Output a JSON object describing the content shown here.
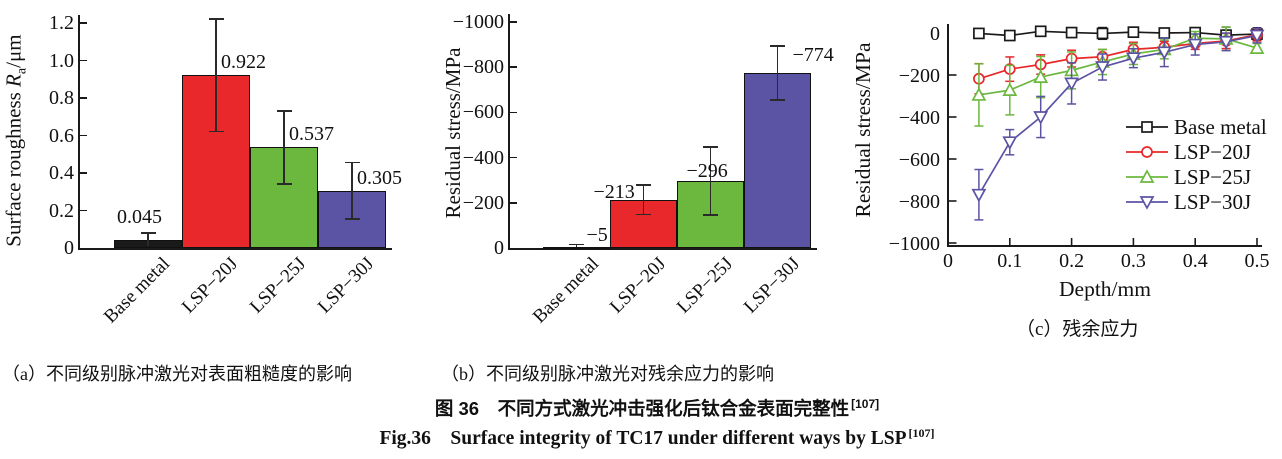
{
  "figure_captions": {
    "cn": "图 36　不同方式激光冲击强化后钛合金表面完整性",
    "cn_sup": "[107]",
    "en": "Fig.36　Surface integrity of TC17 under different ways by LSP",
    "en_sup": "[107]"
  },
  "panel_captions": {
    "a": "（a）不同级别脉冲激光对表面粗糙度的影响",
    "b": "（b）不同级别脉冲激光对残余应力的影响",
    "c": "（c）残余应力"
  },
  "axis_labels": {
    "a_prefix": "Surface roughness ",
    "a_symbol": "R",
    "a_sub": "a",
    "a_suffix": "/μm",
    "b_ylabel": "Residual stress/MPa"
  },
  "colors": {
    "base_metal": "#1a1a1a",
    "lsp20": "#e8282a",
    "lsp25": "#6cb83f",
    "lsp30": "#5b53a4",
    "axis": "#1a1a1a"
  },
  "chart_data": [
    {
      "id": "a",
      "type": "bar",
      "ylabel": "Surface roughness Ra/μm",
      "categories": [
        "Base metal",
        "LSP−20J",
        "LSP−25J",
        "LSP−30J"
      ],
      "values": [
        0.045,
        0.922,
        0.537,
        0.305
      ],
      "errors": [
        0.035,
        0.3,
        0.195,
        0.15
      ],
      "value_labels": [
        "0.045",
        "0.922",
        "0.537",
        "0.305"
      ],
      "bar_colors": [
        "#1a1a1a",
        "#e8282a",
        "#6cb83f",
        "#5b53a4"
      ],
      "ylim": [
        0,
        1.2
      ],
      "yticks": [
        {
          "v": 0,
          "label": "0"
        },
        {
          "v": 0.2,
          "label": "0.2"
        },
        {
          "v": 0.4,
          "label": "0.4"
        },
        {
          "v": 0.6,
          "label": "0.6"
        },
        {
          "v": 0.8,
          "label": "0.8"
        },
        {
          "v": 1.0,
          "label": "1.0"
        },
        {
          "v": 1.2,
          "label": "1.2"
        }
      ]
    },
    {
      "id": "b",
      "type": "bar",
      "ylabel": "Residual stress/MPa",
      "categories": [
        "Base metal",
        "LSP−20J",
        "LSP−25J",
        "LSP−30J"
      ],
      "values": [
        -5,
        -213,
        -296,
        -774
      ],
      "errors": [
        10,
        65,
        150,
        120
      ],
      "value_labels": [
        "−5",
        "−213",
        "−296",
        "−774"
      ],
      "bar_colors": [
        "#1a1a1a",
        "#e8282a",
        "#6cb83f",
        "#5b53a4"
      ],
      "ylim": [
        0,
        -1000
      ],
      "yticks": [
        {
          "v": 0,
          "label": "0"
        },
        {
          "v": -200,
          "label": "−200"
        },
        {
          "v": -400,
          "label": "−400"
        },
        {
          "v": -600,
          "label": "−600"
        },
        {
          "v": -800,
          "label": "−800"
        },
        {
          "v": -1000,
          "label": "−1000"
        }
      ]
    },
    {
      "id": "c",
      "type": "line",
      "xlabel": "Depth/mm",
      "ylabel": "Residual stress/MPa",
      "xlim": [
        0,
        0.5
      ],
      "ylim": [
        0,
        -1000
      ],
      "x": [
        0.05,
        0.1,
        0.15,
        0.2,
        0.25,
        0.3,
        0.35,
        0.4,
        0.45,
        0.5
      ],
      "xticks": [
        {
          "v": 0,
          "label": "0"
        },
        {
          "v": 0.1,
          "label": "0.1"
        },
        {
          "v": 0.2,
          "label": "0.2"
        },
        {
          "v": 0.3,
          "label": "0.3"
        },
        {
          "v": 0.4,
          "label": "0.4"
        },
        {
          "v": 0.5,
          "label": "0.5"
        }
      ],
      "yticks": [
        {
          "v": 0,
          "label": "0"
        },
        {
          "v": -200,
          "label": "−200"
        },
        {
          "v": -400,
          "label": "−400"
        },
        {
          "v": -600,
          "label": "−600"
        },
        {
          "v": -800,
          "label": "−800"
        },
        {
          "v": -1000,
          "label": "−1000"
        }
      ],
      "legend": {
        "position": "inside-right",
        "items": [
          "Base metal",
          "LSP−20J",
          "LSP−25J",
          "LSP−30J"
        ]
      },
      "series": [
        {
          "name": "Base metal",
          "marker": "square",
          "color": "#1a1a1a",
          "values": [
            -2,
            -12,
            8,
            2,
            -2,
            4,
            0,
            2,
            -10,
            -5
          ],
          "errors": [
            10,
            22,
            12,
            18,
            28,
            22,
            18,
            20,
            38,
            30
          ]
        },
        {
          "name": "LSP−20J",
          "marker": "circle",
          "color": "#e8282a",
          "values": [
            -218,
            -172,
            -150,
            -122,
            -113,
            -78,
            -68,
            -50,
            -38,
            -8
          ],
          "errors": [
            72,
            58,
            46,
            40,
            34,
            34,
            28,
            28,
            36,
            30
          ]
        },
        {
          "name": "LSP−25J",
          "marker": "triangle-up",
          "color": "#6cb83f",
          "values": [
            -295,
            -272,
            -210,
            -178,
            -138,
            -100,
            -78,
            -25,
            -28,
            -72
          ],
          "errors": [
            148,
            118,
            98,
            88,
            60,
            50,
            45,
            32,
            55,
            22
          ]
        },
        {
          "name": "LSP−30J",
          "marker": "triangle-down",
          "color": "#5b53a4",
          "values": [
            -770,
            -520,
            -400,
            -240,
            -162,
            -120,
            -92,
            -55,
            -42,
            -12
          ],
          "errors": [
            120,
            60,
            98,
            98,
            62,
            45,
            68,
            50,
            42,
            35
          ]
        }
      ]
    }
  ]
}
